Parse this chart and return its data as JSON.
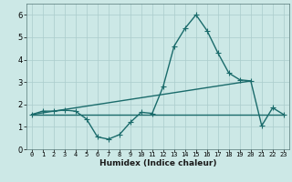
{
  "xlabel": "Humidex (Indice chaleur)",
  "ylabel": "",
  "xlim": [
    -0.5,
    23.5
  ],
  "ylim": [
    0,
    6.5
  ],
  "yticks": [
    0,
    1,
    2,
    3,
    4,
    5,
    6
  ],
  "xticks": [
    0,
    1,
    2,
    3,
    4,
    5,
    6,
    7,
    8,
    9,
    10,
    11,
    12,
    13,
    14,
    15,
    16,
    17,
    18,
    19,
    20,
    21,
    22,
    23
  ],
  "background_color": "#cce8e6",
  "grid_color": "#aacccc",
  "line_color": "#1a6b6b",
  "series1_x": [
    0,
    1,
    2,
    3,
    4,
    5,
    6,
    7,
    8,
    9,
    10,
    11,
    12,
    13,
    14,
    15,
    16,
    17,
    18,
    19,
    20,
    21,
    22,
    23
  ],
  "series1_y": [
    1.55,
    1.7,
    1.7,
    1.75,
    1.7,
    1.35,
    0.55,
    0.45,
    0.65,
    1.2,
    1.65,
    1.6,
    2.8,
    4.6,
    5.4,
    6.0,
    5.3,
    4.3,
    3.4,
    3.1,
    3.05,
    1.05,
    1.85,
    1.55
  ],
  "series2_x": [
    0,
    23
  ],
  "series2_y": [
    1.55,
    1.55
  ],
  "series3_x": [
    0,
    20
  ],
  "series3_y": [
    1.55,
    3.05
  ],
  "marker_size": 2.5,
  "line_width": 1.0
}
